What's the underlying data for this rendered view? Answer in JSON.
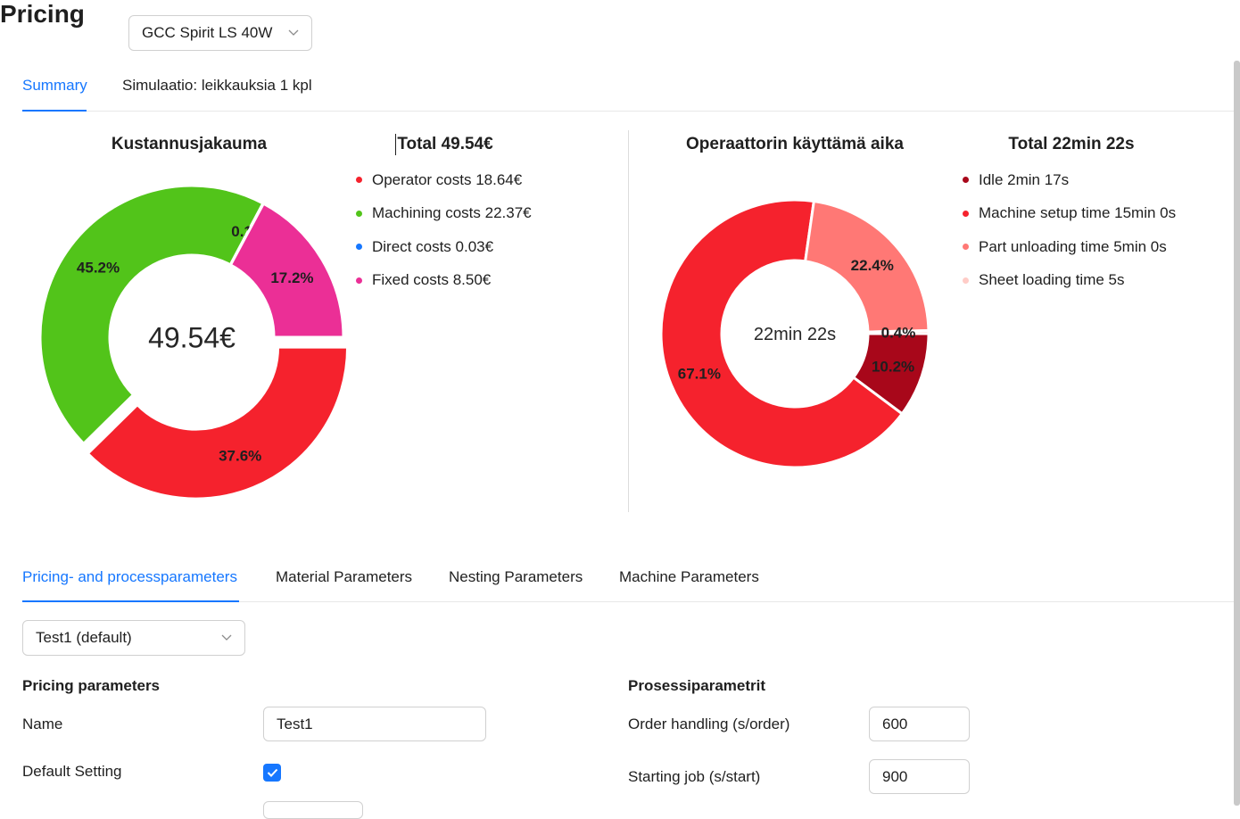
{
  "header": {
    "title": "Pricing",
    "machine_select": "GCC Spirit LS 40W"
  },
  "top_tabs": [
    {
      "label": "Summary",
      "active": true
    },
    {
      "label": "Simulaatio: leikkauksia 1 kpl",
      "active": false
    }
  ],
  "icons": {
    "dropdown": "chevron-down-icon",
    "checkbox": "check-icon"
  },
  "chart_data": [
    {
      "type": "pie",
      "title": "Kustannusjakauma",
      "total_label": "Total 49.54€",
      "center_label": "49.54€",
      "series": [
        {
          "name": "Operator costs 18.64€",
          "value": 18.64,
          "percent_label": "37.6%",
          "color": "#f5222d"
        },
        {
          "name": "Machining costs 22.37€",
          "value": 22.37,
          "percent_label": "45.2%",
          "color": "#52c41a"
        },
        {
          "name": "Direct costs 0.03€",
          "value": 0.03,
          "percent_label": "0.1%",
          "color": "#1677ff"
        },
        {
          "name": "Fixed costs 8.50€",
          "value": 8.5,
          "percent_label": "17.2%",
          "color": "#eb2f96"
        }
      ]
    },
    {
      "type": "pie",
      "title": "Operaattorin käyttämä aika",
      "total_label": "Total 22min 22s",
      "center_label": "22min 22s",
      "series": [
        {
          "name": "Idle 2min 17s",
          "value": 137,
          "percent_label": "10.2%",
          "color": "#a8071a"
        },
        {
          "name": "Machine setup time 15min 0s",
          "value": 900,
          "percent_label": "67.1%",
          "color": "#f5222d"
        },
        {
          "name": "Part unloading time 5min 0s",
          "value": 300,
          "percent_label": "22.4%",
          "color": "#ff7875"
        },
        {
          "name": "Sheet loading time 5s",
          "value": 5,
          "percent_label": "0.4%",
          "color": "#ffccc7"
        }
      ]
    }
  ],
  "param_tabs": [
    {
      "label": "Pricing- and processparameters",
      "active": true
    },
    {
      "label": "Material Parameters",
      "active": false
    },
    {
      "label": "Nesting Parameters",
      "active": false
    },
    {
      "label": "Machine Parameters",
      "active": false
    }
  ],
  "preset_select": "Test1 (default)",
  "pricing_params": {
    "title": "Pricing parameters",
    "name_label": "Name",
    "name_value": "Test1",
    "default_label": "Default Setting",
    "default_checked": true
  },
  "process_params": {
    "title": "Prosessiparametrit",
    "order_label": "Order handling (s/order)",
    "order_value": "600",
    "start_label": "Starting job (s/start)",
    "start_value": "900"
  }
}
